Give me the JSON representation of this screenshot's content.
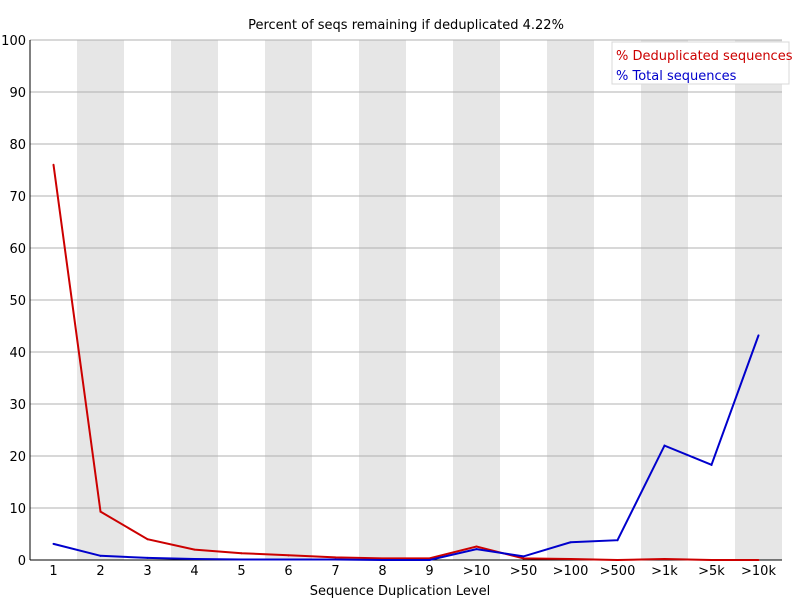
{
  "chart_data": {
    "type": "line",
    "title": "Percent of seqs remaining if deduplicated 4.22%",
    "xlabel": "Sequence Duplication Level",
    "ylabel": "",
    "ylim": [
      0,
      100
    ],
    "yticks": [
      0,
      10,
      20,
      30,
      40,
      50,
      60,
      70,
      80,
      90,
      100
    ],
    "categories": [
      "1",
      "2",
      "3",
      "4",
      "5",
      "6",
      "7",
      "8",
      "9",
      ">10",
      ">50",
      ">100",
      ">500",
      ">1k",
      ">5k",
      ">10k"
    ],
    "series": [
      {
        "name": "% Deduplicated sequences",
        "color": "#cc0000",
        "values": [
          76.0,
          9.3,
          4.0,
          2.0,
          1.3,
          0.9,
          0.5,
          0.3,
          0.3,
          2.6,
          0.3,
          0.2,
          0.0,
          0.2,
          0.0,
          0.0
        ]
      },
      {
        "name": "% Total sequences",
        "color": "#0000cc",
        "values": [
          3.1,
          0.8,
          0.4,
          0.2,
          0.1,
          0.1,
          0.1,
          0.0,
          0.0,
          2.1,
          0.7,
          3.4,
          3.8,
          22.0,
          18.3,
          43.2
        ]
      }
    ],
    "grid": true,
    "legend": "top-right",
    "band_color": "#e6e6e6",
    "grid_color": "#b0b0b0"
  }
}
